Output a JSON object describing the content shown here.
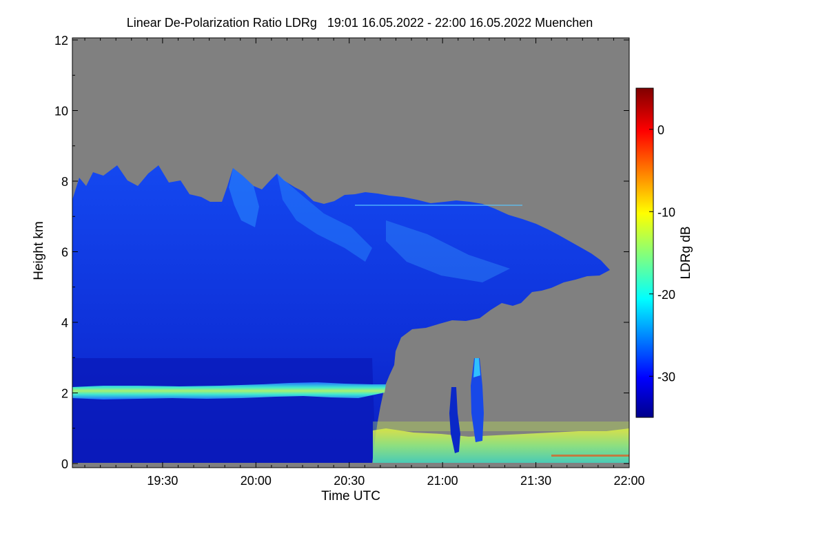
{
  "chart_data": {
    "type": "heatmap",
    "title": "Linear De-Polarization Ratio LDRg   19:01 16.05.2022 - 22:00 16.05.2022 Muenchen",
    "xlabel": "Time UTC",
    "ylabel": "Height km",
    "x_ticks": [
      "19:30",
      "20:00",
      "20:30",
      "21:00",
      "21:30",
      "22:00"
    ],
    "x_range": [
      "19:01",
      "22:00"
    ],
    "y_ticks": [
      "0",
      "2",
      "4",
      "6",
      "8",
      "10",
      "12"
    ],
    "ylim": [
      0,
      12
    ],
    "colorbar": {
      "label": "LDRg dB",
      "ticks": [
        "0",
        "-10",
        "-20",
        "-30"
      ],
      "range": [
        -35,
        5
      ],
      "colormap": "jet"
    },
    "background_color": "#808080",
    "features": [
      {
        "region": "ice cloud",
        "time_start": "19:01",
        "time_end": "21:50",
        "height_top_km": 8.2,
        "height_base_km": 0.0,
        "ldr_db": -30
      },
      {
        "region": "melting layer",
        "time_start": "19:01",
        "time_end": "20:42",
        "height_km": 2.1,
        "ldr_db": -17
      },
      {
        "region": "low-level clutter",
        "time_start": "20:42",
        "time_end": "22:00",
        "height_top_km": 0.9,
        "ldr_db": -12
      },
      {
        "region": "convective columns",
        "times": [
          "21:04",
          "21:11"
        ],
        "height_top_km": 3.0,
        "ldr_db": -32
      }
    ]
  }
}
